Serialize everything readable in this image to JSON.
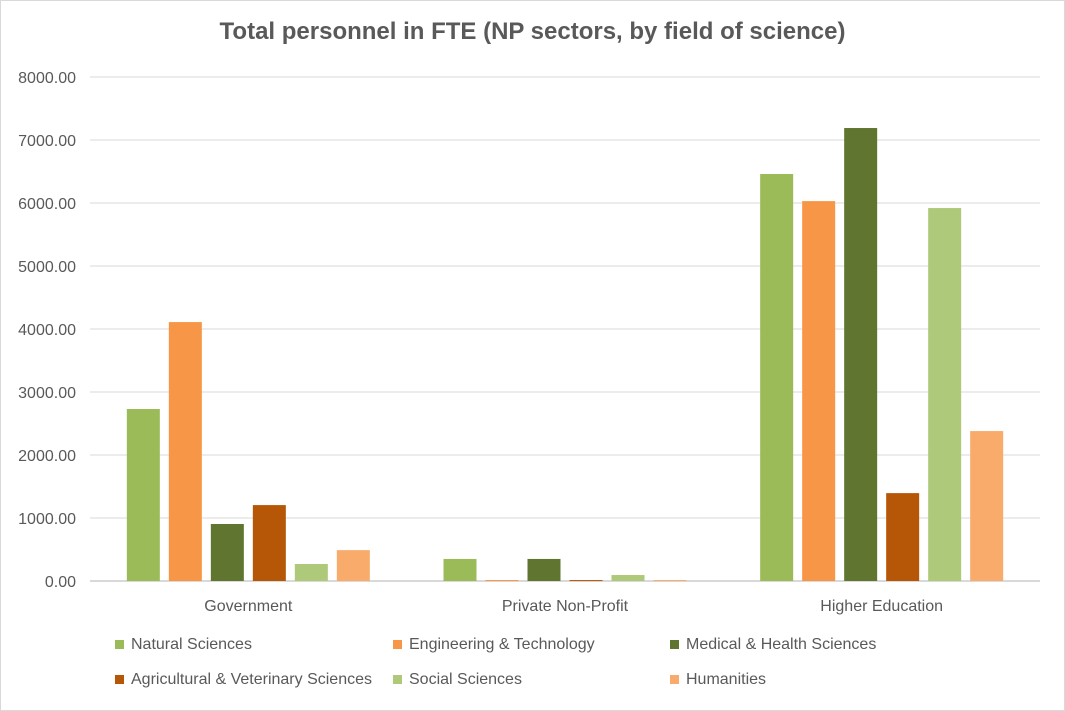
{
  "chart_data": {
    "type": "bar",
    "title": "Total personnel in FTE (NP sectors, by field of science)",
    "categories": [
      "Government",
      "Private Non-Profit",
      "Higher Education"
    ],
    "ylim": [
      0,
      8000
    ],
    "yticks": [
      "0.00",
      "1000.00",
      "2000.00",
      "3000.00",
      "4000.00",
      "5000.00",
      "6000.00",
      "7000.00",
      "8000.00"
    ],
    "grid": true,
    "legend_placement": "bottom",
    "series": [
      {
        "name": "Natural Sciences",
        "color": "#9bbb59",
        "values": [
          2730,
          350,
          6460
        ]
      },
      {
        "name": "Engineering & Technology",
        "color": "#f79646",
        "values": [
          4110,
          15,
          6030
        ]
      },
      {
        "name": "Medical & Health Sciences",
        "color": "#5f7530",
        "values": [
          905,
          350,
          7190
        ]
      },
      {
        "name": "Agricultural & Veterinary Sciences",
        "color": "#b65708",
        "values": [
          1205,
          15,
          1395
        ]
      },
      {
        "name": "Social Sciences",
        "color": "#afc97a",
        "values": [
          270,
          95,
          5920
        ]
      },
      {
        "name": "Humanities",
        "color": "#f9ab6b",
        "values": [
          490,
          15,
          2380
        ]
      }
    ]
  }
}
